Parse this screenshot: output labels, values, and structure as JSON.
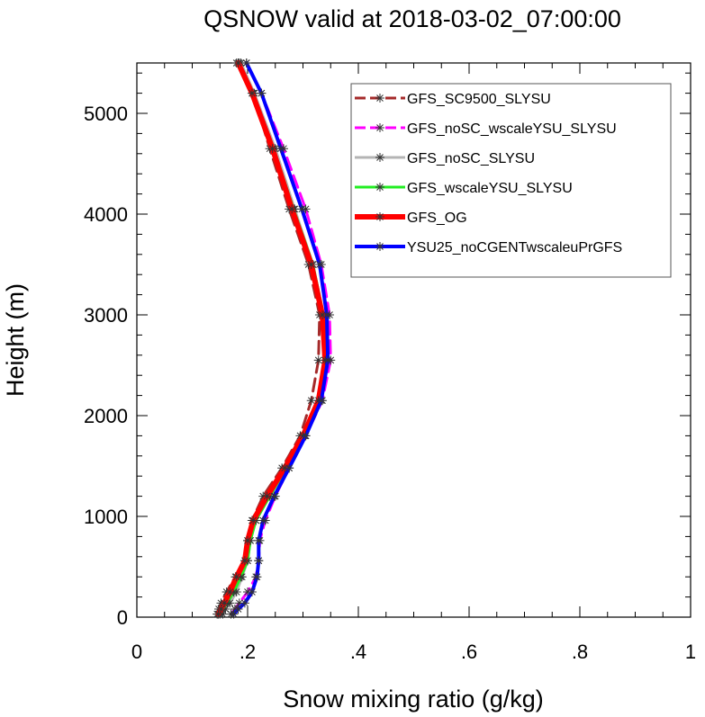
{
  "chart_data": {
    "type": "line",
    "title": "QSNOW valid at 2018-03-02_07:00:00",
    "xlabel": "Snow mixing ratio (g/kg)",
    "ylabel": "Height (m)",
    "xlim": [
      0,
      1
    ],
    "ylim": [
      0,
      5500
    ],
    "x_ticks": [
      0,
      0.2,
      0.4,
      0.6,
      0.8,
      1.0
    ],
    "x_tick_labels": [
      "0",
      ".2",
      ".4",
      ".6",
      ".8",
      "1"
    ],
    "y_ticks": [
      0,
      1000,
      2000,
      3000,
      4000,
      5000
    ],
    "y_tick_labels": [
      "0",
      "1000",
      "2000",
      "3000",
      "4000",
      "5000"
    ],
    "grid": false,
    "legend_position": "top-right",
    "marker": "asterisk",
    "series": [
      {
        "name": "GFS_SC9500_SLYSU",
        "color": "#a52a2a",
        "dash": "dashed",
        "width": 3,
        "points": [
          [
            0.145,
            30
          ],
          [
            0.148,
            80
          ],
          [
            0.152,
            140
          ],
          [
            0.162,
            250
          ],
          [
            0.178,
            400
          ],
          [
            0.196,
            560
          ],
          [
            0.2,
            760
          ],
          [
            0.208,
            960
          ],
          [
            0.228,
            1200
          ],
          [
            0.262,
            1480
          ],
          [
            0.295,
            1800
          ],
          [
            0.315,
            2150
          ],
          [
            0.328,
            2550
          ],
          [
            0.33,
            3000
          ],
          [
            0.31,
            3500
          ],
          [
            0.275,
            4050
          ],
          [
            0.24,
            4650
          ],
          [
            0.21,
            5200
          ],
          [
            0.18,
            5500
          ]
        ]
      },
      {
        "name": "GFS_noSC_wscaleYSU_SLYSU",
        "color": "#ff00ff",
        "dash": "dashed",
        "width": 3,
        "points": [
          [
            0.17,
            30
          ],
          [
            0.177,
            80
          ],
          [
            0.185,
            140
          ],
          [
            0.2,
            250
          ],
          [
            0.215,
            400
          ],
          [
            0.22,
            560
          ],
          [
            0.222,
            760
          ],
          [
            0.232,
            960
          ],
          [
            0.25,
            1200
          ],
          [
            0.275,
            1480
          ],
          [
            0.305,
            1800
          ],
          [
            0.335,
            2150
          ],
          [
            0.35,
            2550
          ],
          [
            0.348,
            3000
          ],
          [
            0.333,
            3500
          ],
          [
            0.305,
            4050
          ],
          [
            0.265,
            4650
          ],
          [
            0.225,
            5200
          ],
          [
            0.198,
            5500
          ]
        ]
      },
      {
        "name": "GFS_noSC_SLYSU",
        "color": "#b4b4b4",
        "dash": "solid",
        "width": 3,
        "points": [
          [
            0.155,
            30
          ],
          [
            0.16,
            80
          ],
          [
            0.168,
            140
          ],
          [
            0.18,
            250
          ],
          [
            0.19,
            400
          ],
          [
            0.2,
            560
          ],
          [
            0.205,
            760
          ],
          [
            0.215,
            960
          ],
          [
            0.238,
            1200
          ],
          [
            0.268,
            1480
          ],
          [
            0.302,
            1800
          ],
          [
            0.33,
            2150
          ],
          [
            0.342,
            2550
          ],
          [
            0.337,
            3000
          ],
          [
            0.318,
            3500
          ],
          [
            0.285,
            4050
          ],
          [
            0.25,
            4650
          ],
          [
            0.212,
            5200
          ],
          [
            0.188,
            5500
          ]
        ]
      },
      {
        "name": "GFS_wscaleYSU_SLYSU",
        "color": "#22ee22",
        "dash": "solid",
        "width": 3,
        "points": [
          [
            0.15,
            30
          ],
          [
            0.155,
            80
          ],
          [
            0.163,
            140
          ],
          [
            0.175,
            250
          ],
          [
            0.188,
            400
          ],
          [
            0.2,
            560
          ],
          [
            0.205,
            760
          ],
          [
            0.215,
            960
          ],
          [
            0.24,
            1200
          ],
          [
            0.27,
            1480
          ],
          [
            0.303,
            1800
          ],
          [
            0.33,
            2150
          ],
          [
            0.342,
            2550
          ],
          [
            0.337,
            3000
          ],
          [
            0.318,
            3500
          ],
          [
            0.283,
            4050
          ],
          [
            0.247,
            4650
          ],
          [
            0.21,
            5200
          ],
          [
            0.185,
            5500
          ]
        ]
      },
      {
        "name": "GFS_OG",
        "color": "#ff0000",
        "dash": "solid",
        "width": 6,
        "points": [
          [
            0.147,
            30
          ],
          [
            0.152,
            80
          ],
          [
            0.158,
            140
          ],
          [
            0.168,
            250
          ],
          [
            0.18,
            400
          ],
          [
            0.195,
            560
          ],
          [
            0.2,
            760
          ],
          [
            0.21,
            960
          ],
          [
            0.235,
            1200
          ],
          [
            0.267,
            1480
          ],
          [
            0.3,
            1800
          ],
          [
            0.328,
            2150
          ],
          [
            0.34,
            2550
          ],
          [
            0.335,
            3000
          ],
          [
            0.315,
            3500
          ],
          [
            0.28,
            4050
          ],
          [
            0.245,
            4650
          ],
          [
            0.208,
            5200
          ],
          [
            0.183,
            5500
          ]
        ]
      },
      {
        "name": "YSU25_noCGENTwscaleuPrGFS",
        "color": "#0000ff",
        "dash": "solid",
        "width": 4,
        "points": [
          [
            0.175,
            30
          ],
          [
            0.183,
            80
          ],
          [
            0.195,
            140
          ],
          [
            0.208,
            250
          ],
          [
            0.217,
            400
          ],
          [
            0.22,
            560
          ],
          [
            0.22,
            760
          ],
          [
            0.228,
            960
          ],
          [
            0.248,
            1200
          ],
          [
            0.275,
            1480
          ],
          [
            0.305,
            1800
          ],
          [
            0.333,
            2150
          ],
          [
            0.345,
            2550
          ],
          [
            0.343,
            3000
          ],
          [
            0.33,
            3500
          ],
          [
            0.298,
            4050
          ],
          [
            0.26,
            4650
          ],
          [
            0.225,
            5200
          ],
          [
            0.198,
            5500
          ]
        ]
      }
    ]
  }
}
